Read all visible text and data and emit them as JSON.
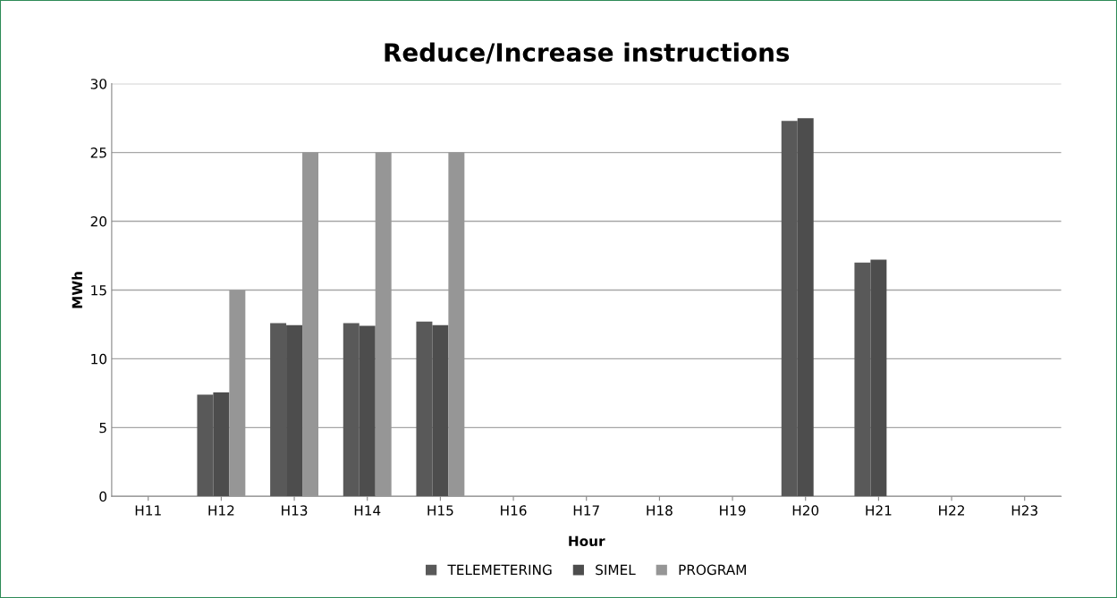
{
  "chart_data": {
    "type": "bar",
    "title": "Reduce/Increase instructions",
    "xlabel": "Hour",
    "ylabel": "MWh",
    "categories": [
      "H11",
      "H12",
      "H13",
      "H14",
      "H15",
      "H16",
      "H17",
      "H18",
      "H19",
      "H20",
      "H21",
      "H22",
      "H23"
    ],
    "series": [
      {
        "name": "TELEMETERING",
        "color": "#595959",
        "values": [
          null,
          7.4,
          12.6,
          12.6,
          12.7,
          null,
          null,
          null,
          null,
          27.3,
          17.0,
          null,
          null
        ]
      },
      {
        "name": "SIMEL",
        "color": "#4d4d4d",
        "values": [
          null,
          7.55,
          12.45,
          12.4,
          12.45,
          null,
          null,
          null,
          null,
          27.5,
          17.2,
          null,
          null
        ]
      },
      {
        "name": "PROGRAM",
        "color": "#969696",
        "values": [
          null,
          15,
          25,
          25,
          25,
          null,
          null,
          null,
          null,
          null,
          null,
          null,
          null
        ]
      }
    ],
    "ylim": [
      0,
      30
    ],
    "yticks": [
      0,
      5,
      10,
      15,
      20,
      25,
      30
    ],
    "grid": "y",
    "legend": "bottom"
  }
}
